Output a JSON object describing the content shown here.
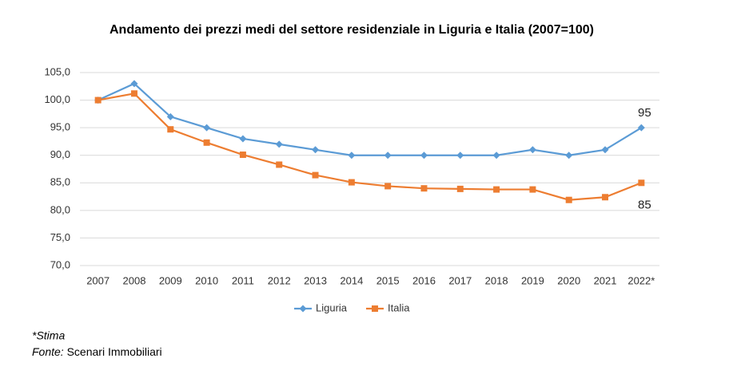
{
  "chart_data": {
    "type": "line",
    "title": "Andamento dei prezzi medi del settore residenziale in Liguria e Italia (2007=100)",
    "categories": [
      "2007",
      "2008",
      "2009",
      "2010",
      "2011",
      "2012",
      "2013",
      "2014",
      "2015",
      "2016",
      "2017",
      "2018",
      "2019",
      "2020",
      "2021",
      "2022*"
    ],
    "series": [
      {
        "name": "Liguria",
        "color": "#5b9bd5",
        "marker": "diamond",
        "values": [
          100,
          103,
          97,
          95,
          93,
          92,
          91,
          90,
          90,
          90,
          90,
          90,
          91,
          90,
          91,
          95
        ]
      },
      {
        "name": "Italia",
        "color": "#ed7d31",
        "marker": "square",
        "values": [
          100,
          101.2,
          94.7,
          92.3,
          90.1,
          88.3,
          86.4,
          85.1,
          84.4,
          84.0,
          83.9,
          83.8,
          83.8,
          81.9,
          82.4,
          85
        ]
      }
    ],
    "ylim": [
      70,
      105
    ],
    "yticks": [
      {
        "value": 70,
        "label": "70,0"
      },
      {
        "value": 75,
        "label": "75,0"
      },
      {
        "value": 80,
        "label": "80,0"
      },
      {
        "value": 85,
        "label": "85,0"
      },
      {
        "value": 90,
        "label": "90,0"
      },
      {
        "value": 95,
        "label": "95,0"
      },
      {
        "value": 100,
        "label": "100,0"
      },
      {
        "value": 105,
        "label": "105,0"
      }
    ],
    "grid": true,
    "legend": "bottom",
    "footnote": "*Stima",
    "source_label": "Fonte:",
    "source": "Scenari Immobiliari"
  }
}
